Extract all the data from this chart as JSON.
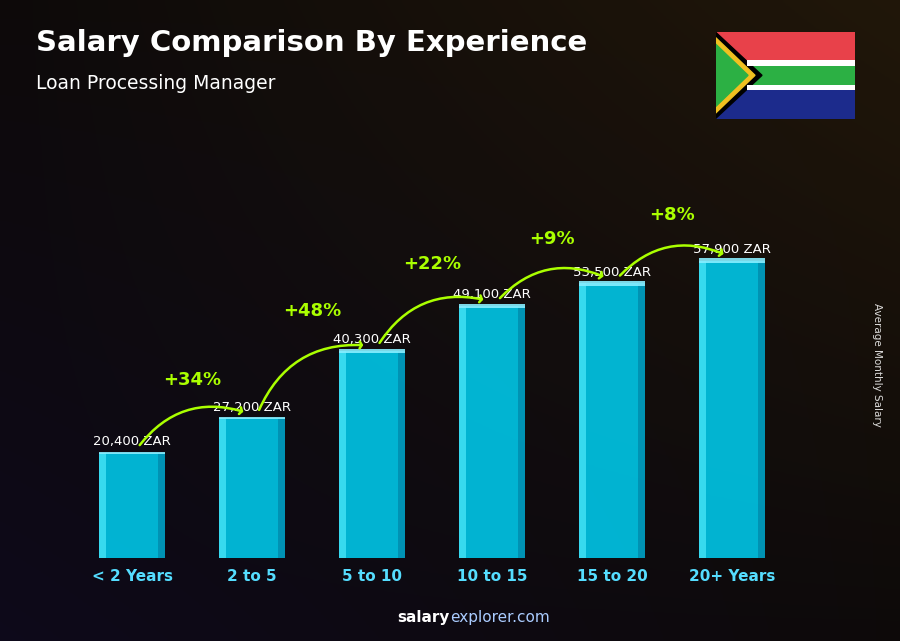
{
  "title": "Salary Comparison By Experience",
  "subtitle": "Loan Processing Manager",
  "ylabel": "Average Monthly Salary",
  "categories": [
    "< 2 Years",
    "2 to 5",
    "5 to 10",
    "10 to 15",
    "15 to 20",
    "20+ Years"
  ],
  "values": [
    20400,
    27200,
    40300,
    49100,
    53500,
    57900
  ],
  "value_labels": [
    "20,400 ZAR",
    "27,200 ZAR",
    "40,300 ZAR",
    "49,100 ZAR",
    "53,500 ZAR",
    "57,900 ZAR"
  ],
  "pct_labels": [
    "+34%",
    "+48%",
    "+22%",
    "+9%",
    "+8%"
  ],
  "bar_face_color": "#00ccee",
  "bar_left_color": "#55eeff",
  "bar_right_color": "#0088aa",
  "bar_top_color": "#44ddff",
  "pct_color": "#aaff00",
  "value_label_color": "#ffffff",
  "xticklabel_color": "#55ddff",
  "title_color": "#ffffff",
  "subtitle_color": "#ffffff",
  "bg_color": "#1a1a2e",
  "ylim": [
    0,
    75000
  ],
  "bar_width": 0.55,
  "footer_bold": "salary",
  "footer_regular": "explorer.com",
  "footer_color_bold": "#ffffff",
  "footer_color_reg": "#aaccff"
}
